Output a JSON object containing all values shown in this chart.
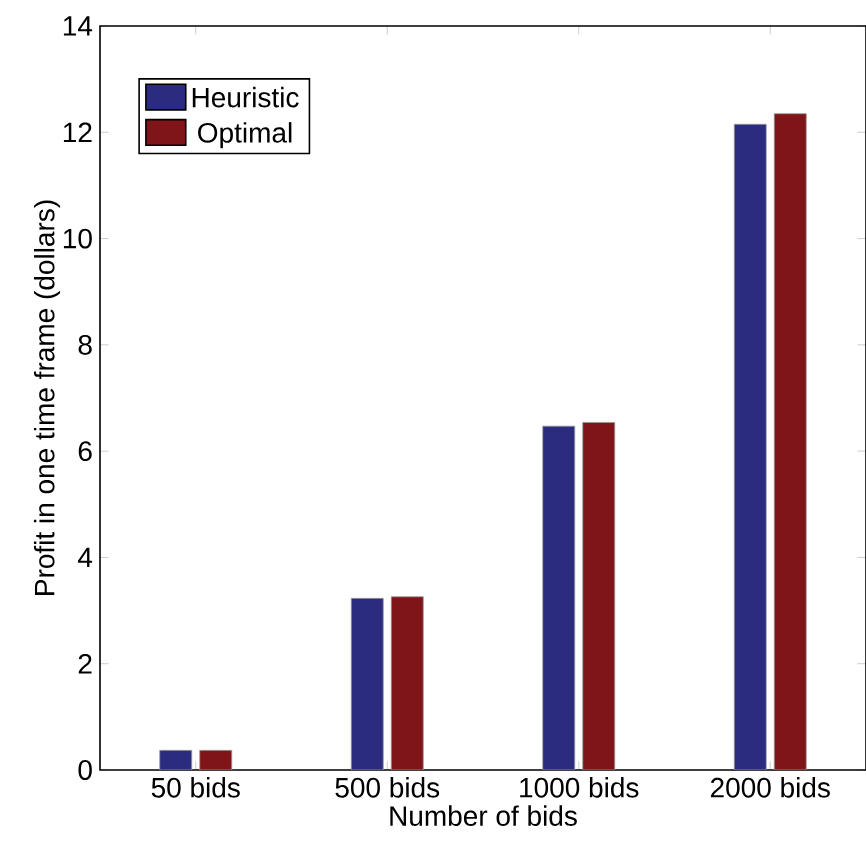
{
  "chart_data": {
    "type": "bar",
    "xlabel": "Number of bids",
    "ylabel": "Profit in one time frame (dollars)",
    "categories": [
      "50 bids",
      "500 bids",
      "1000 bids",
      "2000 bids"
    ],
    "series": [
      {
        "name": "Heuristic",
        "color": "#2b2b7f",
        "values": [
          0.37,
          3.23,
          6.47,
          12.15
        ]
      },
      {
        "name": "Optimal",
        "color": "#7f1518",
        "values": [
          0.37,
          3.26,
          6.54,
          12.35
        ]
      }
    ],
    "ylim": [
      0,
      14
    ],
    "yticks": [
      0,
      2,
      4,
      6,
      8,
      10,
      12,
      14
    ],
    "grid": false,
    "legend": "top left"
  }
}
